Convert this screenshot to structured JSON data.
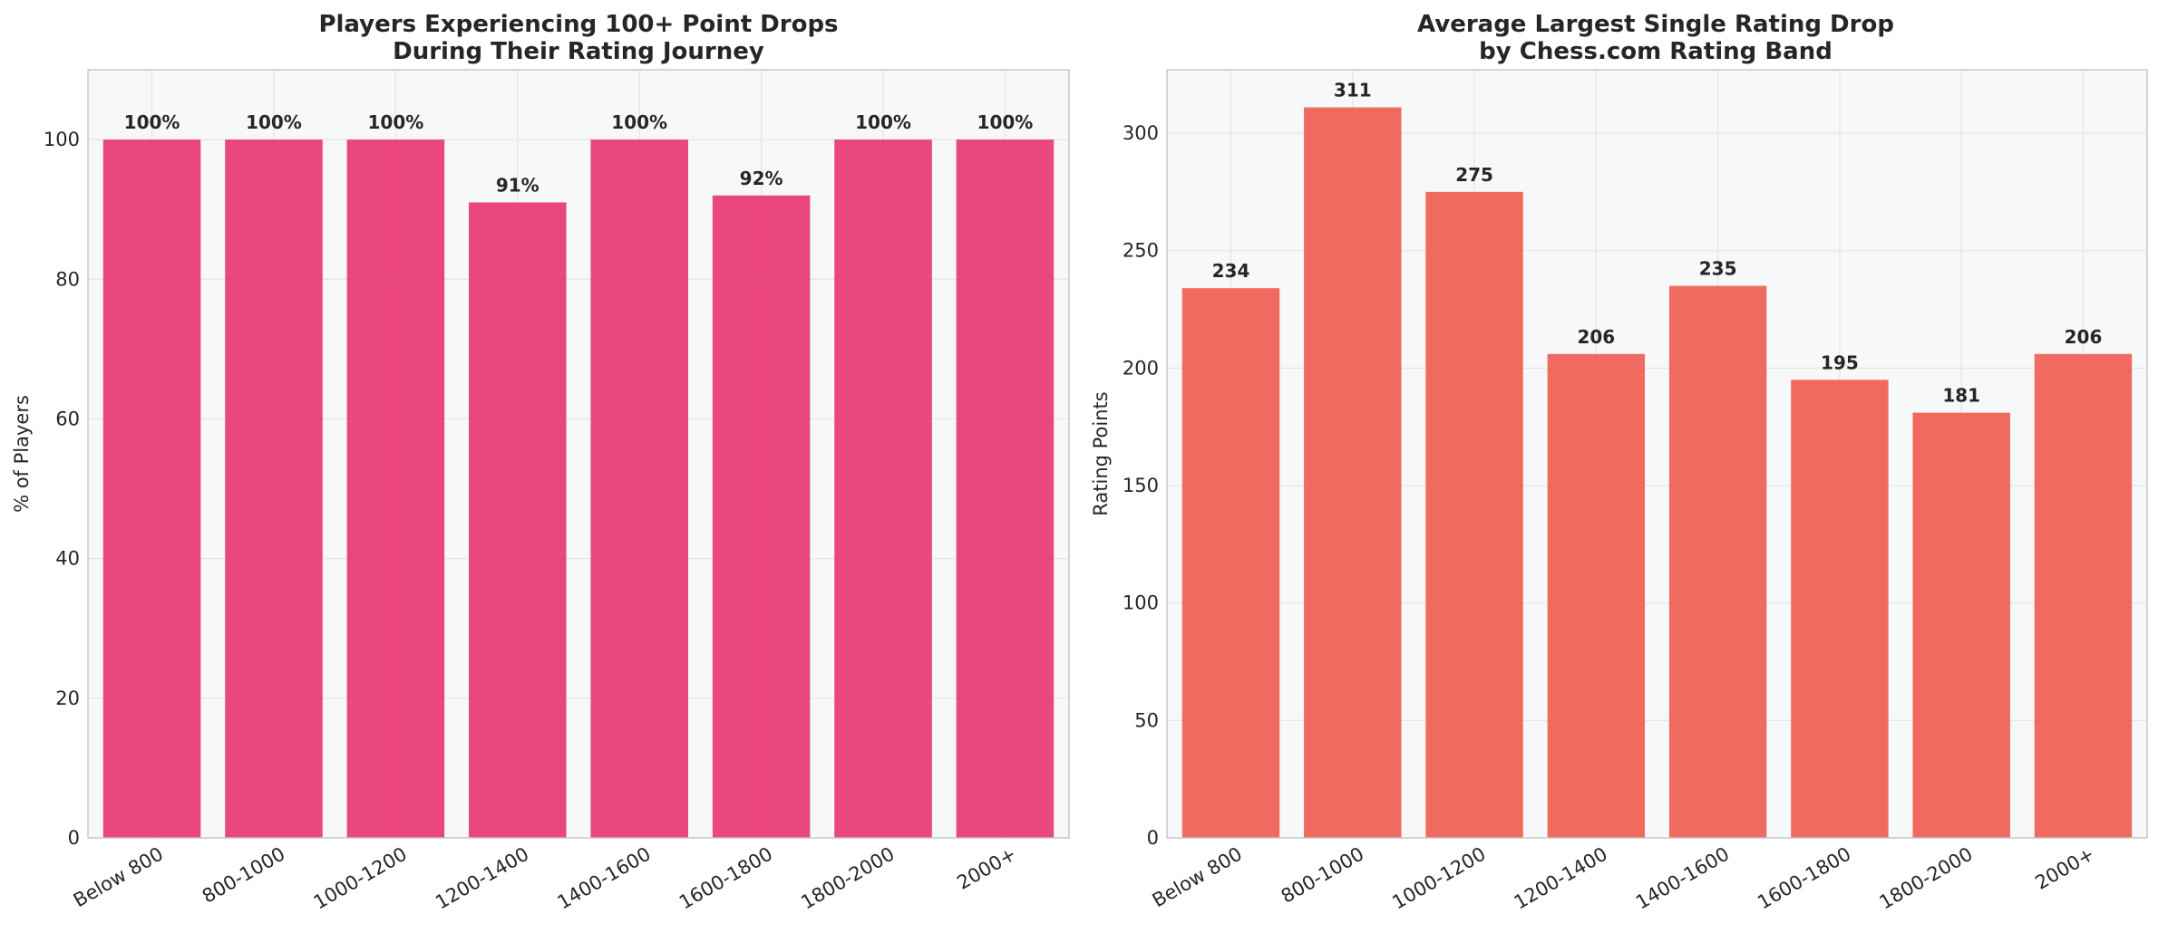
{
  "chart_data": [
    {
      "type": "bar",
      "title": [
        "Players Experiencing 100+ Point Drops",
        "During Their Rating Journey"
      ],
      "xlabel": "",
      "ylabel": "% of Players",
      "categories": [
        "Below 800",
        "800-1000",
        "1000-1200",
        "1200-1400",
        "1400-1600",
        "1600-1800",
        "1800-2000",
        "2000+"
      ],
      "values": [
        100,
        100,
        100,
        91,
        100,
        92,
        100,
        100
      ],
      "data_labels": [
        "100%",
        "100%",
        "100%",
        "91%",
        "100%",
        "92%",
        "100%",
        "100%"
      ],
      "ylim": [
        0,
        110
      ],
      "yticks": [
        0,
        20,
        40,
        60,
        80,
        100
      ],
      "ytick_labels": [
        "0",
        "20",
        "40",
        "60",
        "80",
        "100"
      ],
      "bar_color": "#E8336E",
      "grid": true
    },
    {
      "type": "bar",
      "title": [
        "Average Largest Single Rating Drop",
        "by Chess.com Rating Band"
      ],
      "xlabel": "",
      "ylabel": "Rating Points",
      "categories": [
        "Below 800",
        "800-1000",
        "1000-1200",
        "1200-1400",
        "1400-1600",
        "1600-1800",
        "1800-2000",
        "2000+"
      ],
      "values": [
        234,
        311,
        275,
        206,
        235,
        195,
        181,
        206
      ],
      "data_labels": [
        "234",
        "311",
        "275",
        "206",
        "235",
        "195",
        "181",
        "206"
      ],
      "ylim": [
        0,
        327
      ],
      "yticks": [
        0,
        50,
        100,
        150,
        200,
        250,
        300
      ],
      "ytick_labels": [
        "0",
        "50",
        "100",
        "150",
        "200",
        "250",
        "300"
      ],
      "bar_color": "#F05A4F",
      "grid": true
    }
  ]
}
